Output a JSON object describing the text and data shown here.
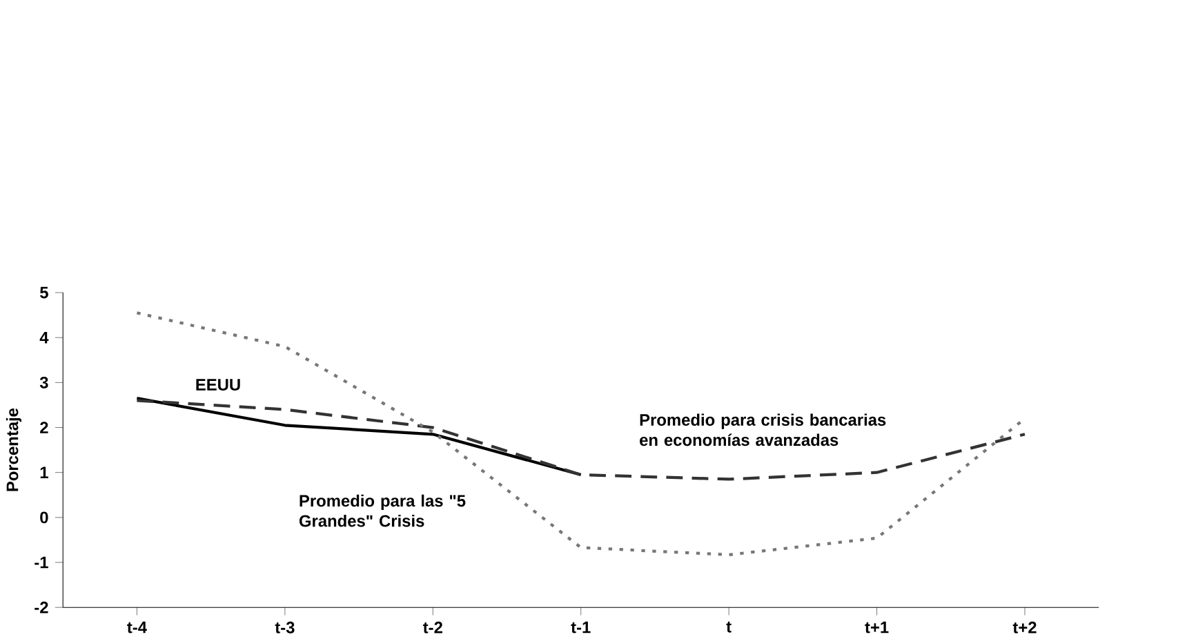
{
  "chart_data": {
    "type": "line",
    "ylabel": "Porcentaje",
    "categories": [
      "t-4",
      "t-3",
      "t-2",
      "t-1",
      "t",
      "t+1",
      "t+2"
    ],
    "ylim": [
      -2,
      5
    ],
    "yticks": [
      -2,
      -1,
      0,
      1,
      2,
      3,
      4,
      5
    ],
    "grid": false,
    "legend": false,
    "marker": "none",
    "series": [
      {
        "name": "EEUU",
        "color": "#000000",
        "line_style": "solid",
        "values": [
          2.65,
          2.05,
          1.85,
          0.95,
          null,
          null,
          null
        ]
      },
      {
        "name": "Promedio para crisis bancarias en economías avanzadas",
        "color": "#333333",
        "line_style": "dashed",
        "values": [
          2.6,
          2.4,
          2.0,
          0.95,
          0.85,
          1.0,
          1.85
        ]
      },
      {
        "name": "Promedio para las \"5 Grandes\" Crisis",
        "color": "#777777",
        "line_style": "dotted",
        "values": [
          4.55,
          3.8,
          1.9,
          -0.67,
          -0.83,
          -0.46,
          2.2
        ]
      }
    ]
  }
}
